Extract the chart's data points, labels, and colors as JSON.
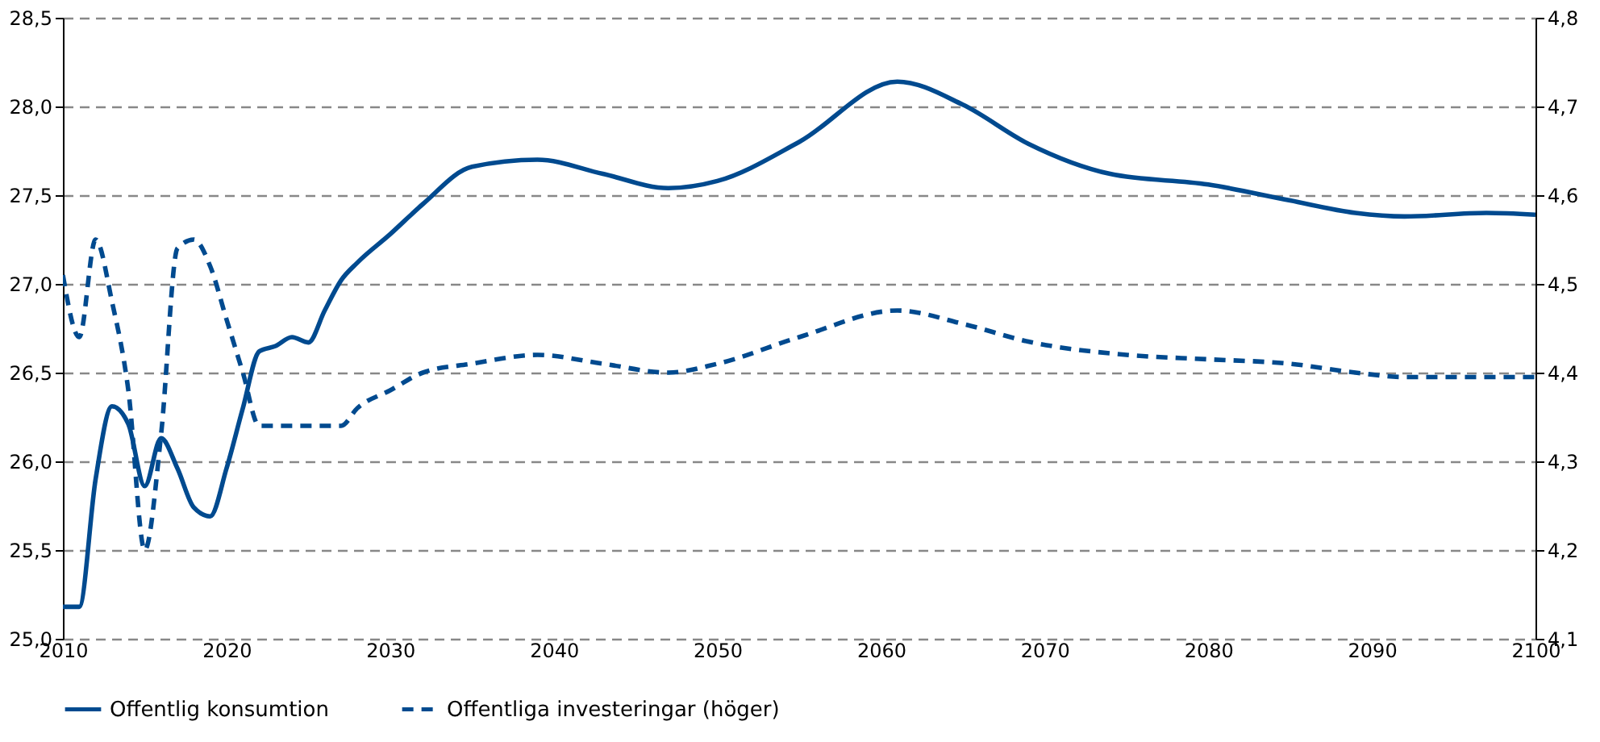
{
  "chart_data": {
    "type": "line",
    "xlim": [
      2010,
      2100
    ],
    "xticks": [
      2010,
      2020,
      2030,
      2040,
      2050,
      2060,
      2070,
      2080,
      2090,
      2100
    ],
    "ylim": [
      25.0,
      28.5
    ],
    "yticks": [
      {
        "value": 25.0,
        "label": "25,0"
      },
      {
        "value": 25.5,
        "label": "25,5"
      },
      {
        "value": 26.0,
        "label": "26,0"
      },
      {
        "value": 26.5,
        "label": "26,5"
      },
      {
        "value": 27.0,
        "label": "27,0"
      },
      {
        "value": 27.5,
        "label": "27,5"
      },
      {
        "value": 28.0,
        "label": "28,0"
      },
      {
        "value": 28.5,
        "label": "28,5"
      }
    ],
    "y2lim": [
      4.1,
      4.8
    ],
    "y2ticks": [
      {
        "value": 4.1,
        "label": "4,1"
      },
      {
        "value": 4.2,
        "label": "4,2"
      },
      {
        "value": 4.3,
        "label": "4,3"
      },
      {
        "value": 4.4,
        "label": "4,4"
      },
      {
        "value": 4.5,
        "label": "4,5"
      },
      {
        "value": 4.6,
        "label": "4,6"
      },
      {
        "value": 4.7,
        "label": "4,7"
      },
      {
        "value": 4.8,
        "label": "4,8"
      }
    ],
    "grid": "y",
    "legend": "bottom",
    "series": [
      {
        "name": "Offentlig konsumtion",
        "color": "#004a8f",
        "line_style": "solid",
        "x": [
          2010,
          2011,
          2012,
          2013,
          2014,
          2015,
          2016,
          2017,
          2018,
          2019,
          2020,
          2021,
          2022,
          2023,
          2024,
          2025,
          2026,
          2027,
          2028,
          2030,
          2032,
          2035,
          2039,
          2043,
          2047,
          2050,
          2055,
          2061,
          2065,
          2069,
          2074,
          2080,
          2085,
          2089,
          2092,
          2097,
          2100
        ],
        "values": [
          25.18,
          25.18,
          25.9,
          26.31,
          26.21,
          25.86,
          26.13,
          25.96,
          25.74,
          25.69,
          25.96,
          26.3,
          26.62,
          26.65,
          26.7,
          26.67,
          26.85,
          27.02,
          27.12,
          27.28,
          27.45,
          27.66,
          27.7,
          27.62,
          27.54,
          27.58,
          27.8,
          28.14,
          28.01,
          27.79,
          27.62,
          27.56,
          27.47,
          27.4,
          27.38,
          27.4,
          27.39
        ]
      },
      {
        "name": "Offentliga investeringar (höger)",
        "color": "#004a8f",
        "line_style": "dashed",
        "axis": "y2",
        "x": [
          2010,
          2011,
          2012,
          2013,
          2014,
          2015,
          2016,
          2017,
          2018,
          2019,
          2020,
          2021,
          2022,
          2023,
          2025,
          2027,
          2028,
          2030,
          2032,
          2035,
          2039,
          2043,
          2047,
          2050,
          2055,
          2061,
          2065,
          2069,
          2075,
          2080,
          2085,
          2089,
          2092,
          2100
        ],
        "values": [
          4.51,
          4.44,
          4.55,
          4.48,
          4.38,
          4.2,
          4.33,
          4.54,
          4.55,
          4.52,
          4.46,
          4.4,
          4.34,
          4.34,
          4.34,
          4.34,
          4.36,
          4.38,
          4.4,
          4.41,
          4.42,
          4.41,
          4.4,
          4.41,
          4.44,
          4.47,
          4.455,
          4.435,
          4.42,
          4.415,
          4.41,
          4.4,
          4.395,
          4.395
        ]
      }
    ]
  }
}
